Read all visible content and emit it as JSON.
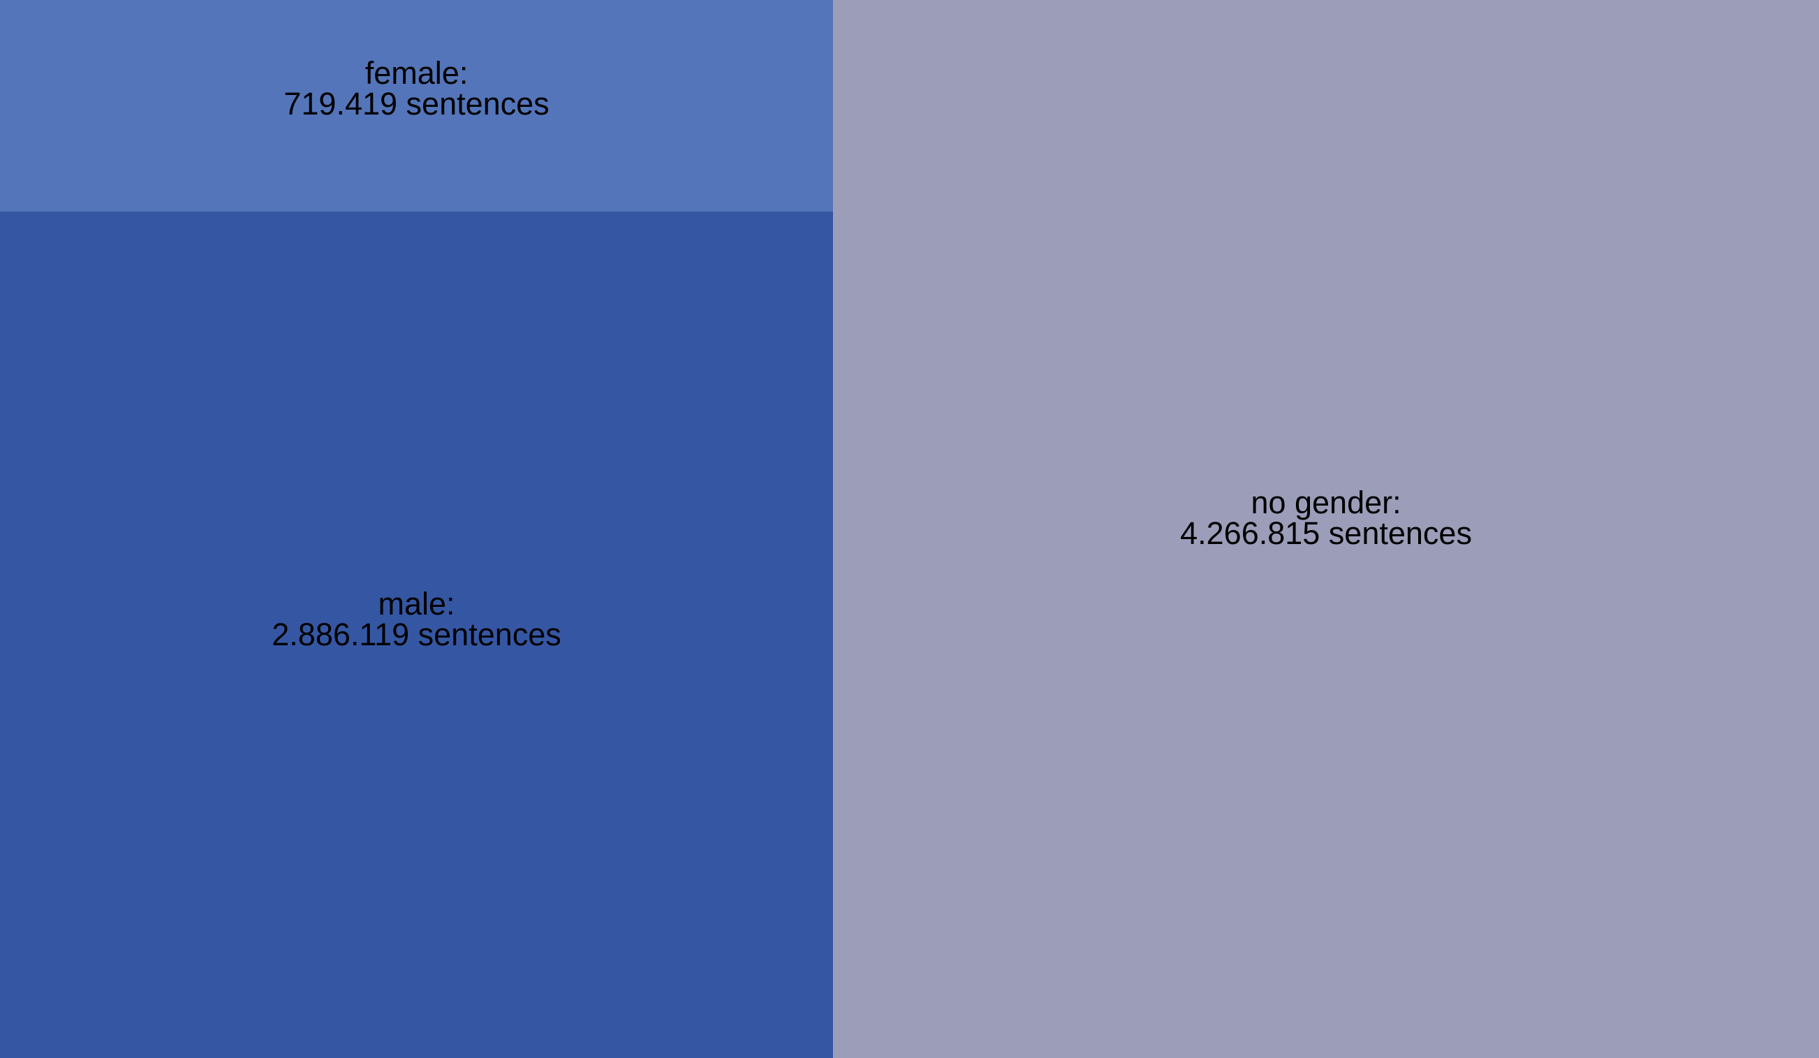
{
  "chart_data": {
    "type": "treemap",
    "unit": "sentences",
    "tiles": [
      {
        "key": "female",
        "label": "female:",
        "value": 719419,
        "value_text": "719.419 sentences",
        "color": "#5475b9"
      },
      {
        "key": "male",
        "label": "male:",
        "value": 2886119,
        "value_text": "2.886.119 sentences",
        "color": "#3557a3"
      },
      {
        "key": "no_gender",
        "label": "no gender:",
        "value": 4266815,
        "value_text": "4.266.815 sentences",
        "color": "#9c9db9"
      }
    ]
  }
}
